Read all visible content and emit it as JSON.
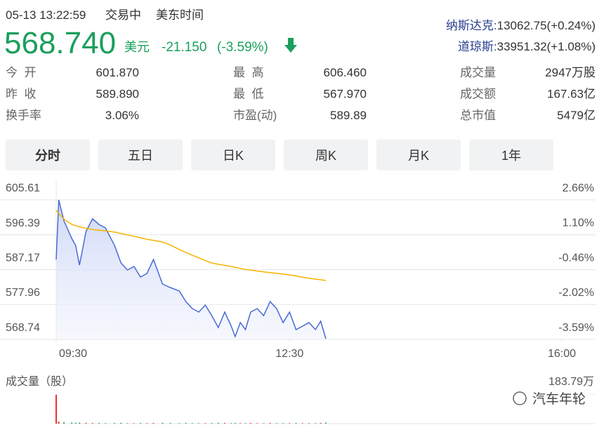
{
  "header": {
    "datetime": "05-13 13:22:59",
    "status": "交易中",
    "timezone": "美东时间",
    "price": "568.740",
    "currency": "美元",
    "change": "-21.150",
    "change_pct": "(-3.59%)"
  },
  "indices": [
    {
      "name": "纳斯达克:",
      "value": "13062.75(+0.24%)"
    },
    {
      "name": "道琼斯:",
      "value": "33951.32(+1.08%)"
    }
  ],
  "stats": [
    [
      {
        "label": "今  开",
        "value": "601.870",
        "color": "#e93030"
      },
      {
        "label": "昨  收",
        "value": "589.890"
      },
      {
        "label": "换手率",
        "value": "3.06%"
      }
    ],
    [
      {
        "label": "最  高",
        "value": "606.460",
        "color": "#e93030"
      },
      {
        "label": "最  低",
        "value": "567.970",
        "color": "#1a9f5c"
      },
      {
        "label": "市盈(动)",
        "value": "589.89"
      }
    ],
    [
      {
        "label": "成交量",
        "value": "2947万股"
      },
      {
        "label": "成交额",
        "value": "167.63亿"
      },
      {
        "label": "总市值",
        "value": "5479亿"
      }
    ]
  ],
  "tabs": [
    {
      "label": "分时",
      "active": true
    },
    {
      "label": "五日"
    },
    {
      "label": "日K"
    },
    {
      "label": "周K"
    },
    {
      "label": "月K"
    },
    {
      "label": "1年"
    }
  ],
  "chart_data": {
    "type": "line",
    "x": [
      0,
      2,
      6,
      12,
      15,
      18,
      23,
      28,
      33,
      38,
      45,
      50,
      55,
      60,
      65,
      70,
      75,
      82,
      88,
      95,
      100,
      105,
      110,
      115,
      120,
      125,
      130,
      135,
      138,
      142,
      146,
      150,
      155,
      160,
      165,
      170,
      175,
      180,
      185,
      190,
      195,
      200,
      204,
      208
    ],
    "series": [
      {
        "color": "#4a6ad6",
        "fill": "#dfe5fb",
        "values": [
          589.86,
          605.61,
          600.05,
          595.42,
          593.57,
          588.38,
          597.27,
          600.61,
          599.13,
          598.2,
          593.57,
          588.93,
          587.08,
          588.01,
          585.23,
          586.15,
          589.86,
          583.38,
          582.45,
          581.52,
          578.74,
          576.89,
          575.96,
          577.81,
          575.04,
          571.89,
          575.96,
          572.26,
          569.48,
          573.18,
          571.33,
          575.96,
          576.89,
          575.04,
          578.74,
          576.89,
          573.18,
          575.96,
          571.33,
          572.26,
          573.18,
          571.33,
          573.55,
          568.92
        ]
      },
      {
        "color": "#f5b400",
        "values": [
          602.83,
          602.0,
          600.5,
          599.13,
          598.8,
          598.5,
          598.1,
          597.8,
          597.6,
          597.4,
          597.1,
          596.72,
          596.4,
          596.0,
          595.6,
          595.2,
          594.9,
          594.49,
          593.7,
          592.5,
          591.71,
          591.0,
          590.3,
          589.6,
          588.93,
          588.6,
          588.3,
          588.0,
          587.8,
          587.5,
          587.2,
          587.08,
          586.8,
          586.6,
          586.4,
          586.2,
          586.0,
          585.78,
          585.5,
          585.2,
          584.9,
          584.67,
          584.5,
          584.3
        ]
      }
    ],
    "xlim": [
      0,
      390
    ],
    "xticks": [
      {
        "value": 0,
        "label": "09:30"
      },
      {
        "value": 180,
        "label": "12:30"
      },
      {
        "value": 390,
        "label": "16:00"
      }
    ],
    "ylim": [
      568.74,
      605.61
    ],
    "yticks": [
      605.61,
      596.39,
      587.17,
      577.96,
      568.74
    ],
    "y2lim": [
      -3.59,
      2.66
    ],
    "y2ticks": [
      {
        "value": 2.66,
        "label": "2.66%"
      },
      {
        "value": 1.1,
        "label": "1.10%"
      },
      {
        "value": -0.46,
        "label": "-0.46%"
      },
      {
        "value": -2.02,
        "label": "-2.02%"
      },
      {
        "value": -3.59,
        "label": "-3.59%"
      }
    ],
    "grid": true
  },
  "volume": {
    "label": "成交量（股）",
    "up_color": "#e93030",
    "down_color": "#1a9f5c",
    "ylim": [
      0,
      183.79
    ],
    "yticks": [
      {
        "value": 183.79,
        "label": "183.79万"
      }
    ],
    "values": [
      180,
      12,
      8,
      6,
      5,
      6,
      5,
      4,
      4,
      3,
      4,
      5,
      3,
      3,
      4,
      3,
      4,
      5,
      4,
      3,
      4,
      3,
      3,
      3,
      4,
      5,
      4,
      3,
      4,
      3,
      3,
      4,
      3,
      3,
      4,
      3,
      3,
      3,
      4,
      3,
      3,
      3,
      4,
      6
    ]
  },
  "watermark": "汽车年轮"
}
